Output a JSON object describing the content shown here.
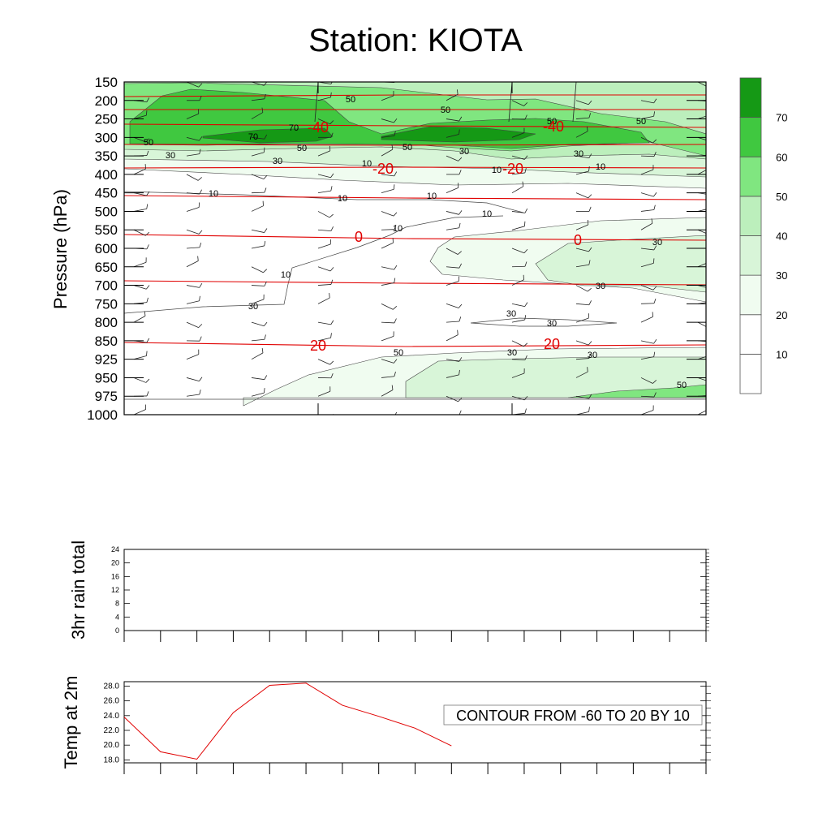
{
  "title": "Station: KIOTA",
  "chart_data": [
    {
      "type": "heatmap",
      "title": "Station: KIOTA",
      "ylabel": "Pressure (hPa)",
      "pressure_levels": [
        150,
        200,
        250,
        300,
        350,
        400,
        450,
        500,
        550,
        600,
        650,
        700,
        750,
        800,
        850,
        925,
        950,
        975,
        1000
      ],
      "shading_legend": {
        "levels": [
          10,
          20,
          30,
          40,
          50,
          60,
          70
        ],
        "colors": [
          "#ffffff",
          "#f0fcf0",
          "#d8f5d8",
          "#bcefbc",
          "#80e680",
          "#40c840",
          "#159915"
        ]
      },
      "contour_labels": [
        "70",
        "70",
        "50",
        "50",
        "50",
        "50",
        "50",
        "50",
        "50",
        "30",
        "30",
        "30",
        "30",
        "10",
        "10",
        "10",
        "10",
        "10",
        "10",
        "10",
        "10",
        "10",
        "30",
        "30",
        "30",
        "30",
        "30",
        "50"
      ],
      "temperature_labels": [
        "-40",
        "-40",
        "-20",
        "-20",
        "0",
        "0",
        "20",
        "20"
      ],
      "accent_colors": {
        "temperature_lines": "#e00000"
      }
    },
    {
      "type": "line",
      "ylabel": "3hr rain total",
      "yticks": [
        "0",
        "4",
        "8",
        "12",
        "16",
        "20",
        "24"
      ],
      "ylim": [
        0,
        24
      ],
      "values": []
    },
    {
      "type": "line",
      "ylabel": "Temp at 2m",
      "yticks": [
        "18.0",
        "20.0",
        "22.0",
        "24.0",
        "26.0",
        "28.0"
      ],
      "ylim": [
        17.6,
        28.6
      ],
      "x": [
        0,
        1,
        2,
        3,
        4,
        5,
        6,
        7,
        8,
        9
      ],
      "values": [
        23.8,
        19.1,
        18.1,
        24.4,
        28.1,
        28.4,
        25.4,
        23.9,
        22.3,
        19.9
      ],
      "annotation": "CONTOUR FROM -60 TO 20 BY 10",
      "line_color": "#e00000"
    }
  ]
}
